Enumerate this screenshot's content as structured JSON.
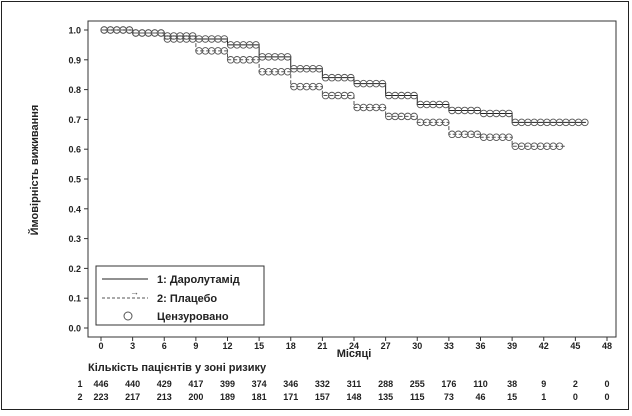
{
  "chart_data": {
    "type": "line",
    "subtype": "kaplan-meier",
    "title": "",
    "ylabel": "Ймовірність виживання",
    "xlabel": "Місяці",
    "xlim": [
      0,
      48
    ],
    "ylim": [
      0,
      1.0
    ],
    "x_ticks": [
      0,
      3,
      6,
      9,
      12,
      15,
      18,
      21,
      24,
      27,
      30,
      33,
      36,
      39,
      42,
      45,
      48
    ],
    "y_ticks": [
      0.0,
      0.1,
      0.2,
      0.3,
      0.4,
      0.5,
      0.6,
      0.7,
      0.8,
      0.9,
      1.0
    ],
    "grid": false,
    "legend_position": "bottom-left",
    "legend": {
      "series1": "1:  Даролутамід",
      "series2": "2:  Плацебо",
      "censored": "Цензуровано",
      "arrow": "→"
    },
    "series": [
      {
        "name": "1:  Даролутамід",
        "line_style": "solid",
        "x": [
          0,
          3,
          6,
          9,
          12,
          15,
          18,
          21,
          24,
          27,
          30,
          33,
          36,
          39,
          42,
          45,
          46
        ],
        "y": [
          1.0,
          0.99,
          0.98,
          0.97,
          0.95,
          0.91,
          0.87,
          0.84,
          0.82,
          0.78,
          0.75,
          0.73,
          0.72,
          0.69,
          0.69,
          0.69,
          0.69
        ]
      },
      {
        "name": "2:  Плацебо",
        "line_style": "dashed",
        "x": [
          0,
          3,
          6,
          9,
          12,
          15,
          18,
          21,
          24,
          27,
          30,
          33,
          36,
          39,
          42,
          44
        ],
        "y": [
          1.0,
          0.99,
          0.97,
          0.93,
          0.9,
          0.86,
          0.81,
          0.78,
          0.74,
          0.71,
          0.69,
          0.65,
          0.64,
          0.61,
          0.61,
          0.61
        ]
      }
    ],
    "at_risk": {
      "title": "Кількість пацієнтів у зоні ризику",
      "rows": [
        {
          "label": "1",
          "values": [
            "446",
            "440",
            "429",
            "417",
            "399",
            "374",
            "346",
            "332",
            "311",
            "288",
            "255",
            "176",
            "110",
            "38",
            "9",
            "2",
            "0"
          ]
        },
        {
          "label": "2",
          "values": [
            "223",
            "217",
            "213",
            "200",
            "189",
            "181",
            "171",
            "157",
            "148",
            "135",
            "115",
            "73",
            "46",
            "15",
            "1",
            "0",
            "0"
          ]
        }
      ]
    }
  },
  "colors": {
    "axis": "#333333",
    "series1": "#222222",
    "series2": "#555555",
    "marker": "#555555"
  }
}
